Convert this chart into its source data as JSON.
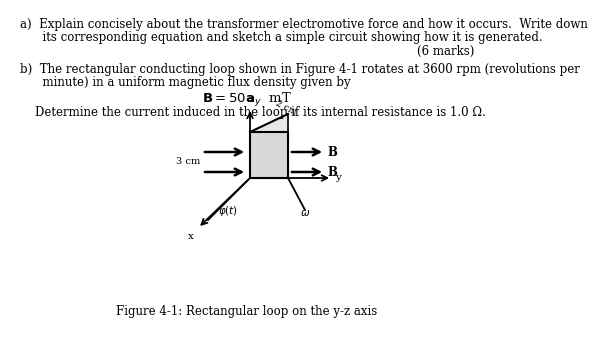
{
  "bg_color": "#ffffff",
  "text_a_line1": "a)  Explain concisely about the transformer electromotive force and how it occurs.  Write down",
  "text_a_line2": "      its corresponding equation and sketch a simple circuit showing how it is generated.",
  "text_marks": "(6 marks)",
  "text_b_line1": "b)  The rectangular conducting loop shown in Figure 4-1 rotates at 3600 rpm (revolutions per",
  "text_b_line2": "      minute) in a uniform magnetic flux density given by",
  "text_determine": "    Determine the current induced in the loop if its internal resistance is 1.0 Ω.",
  "fig_caption": "Figure 4-1: Rectangular loop on the y-z axis",
  "font_size_main": 8.5,
  "font_size_eq": 9.5,
  "font_size_caption": 8.5
}
